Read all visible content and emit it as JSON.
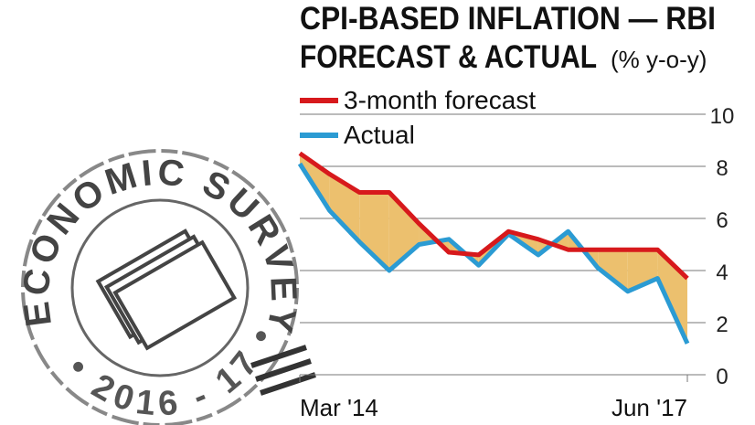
{
  "chart_data": {
    "type": "line",
    "title": [
      "CPI-BASED INFLATION — RBI",
      "FORECAST & ACTUAL"
    ],
    "subtitle": "(% y-o-y)",
    "categories": [
      "Mar '14",
      null,
      null,
      null,
      null,
      null,
      null,
      null,
      null,
      null,
      null,
      null,
      null,
      "Jun '17"
    ],
    "series": [
      {
        "name": "3-month forecast",
        "color": "#d7191c",
        "values": [
          8.5,
          7.7,
          7.0,
          7.0,
          5.8,
          4.7,
          4.6,
          5.5,
          5.2,
          4.8,
          4.8,
          4.8,
          4.8,
          3.7
        ]
      },
      {
        "name": "Actual",
        "color": "#2b9bd3",
        "values": [
          8.1,
          6.3,
          5.1,
          4.0,
          5.0,
          5.2,
          4.2,
          5.4,
          4.6,
          5.5,
          4.1,
          3.2,
          3.7,
          1.2
        ]
      }
    ],
    "fill_between_color": "#ecc06e",
    "ylim": [
      0,
      10
    ],
    "yticks": [
      0,
      2,
      4,
      6,
      8,
      10
    ],
    "grid": true
  },
  "stamp": {
    "top": "ECONOMIC SURVEY",
    "bottom": "• 2016 - 17 •"
  }
}
